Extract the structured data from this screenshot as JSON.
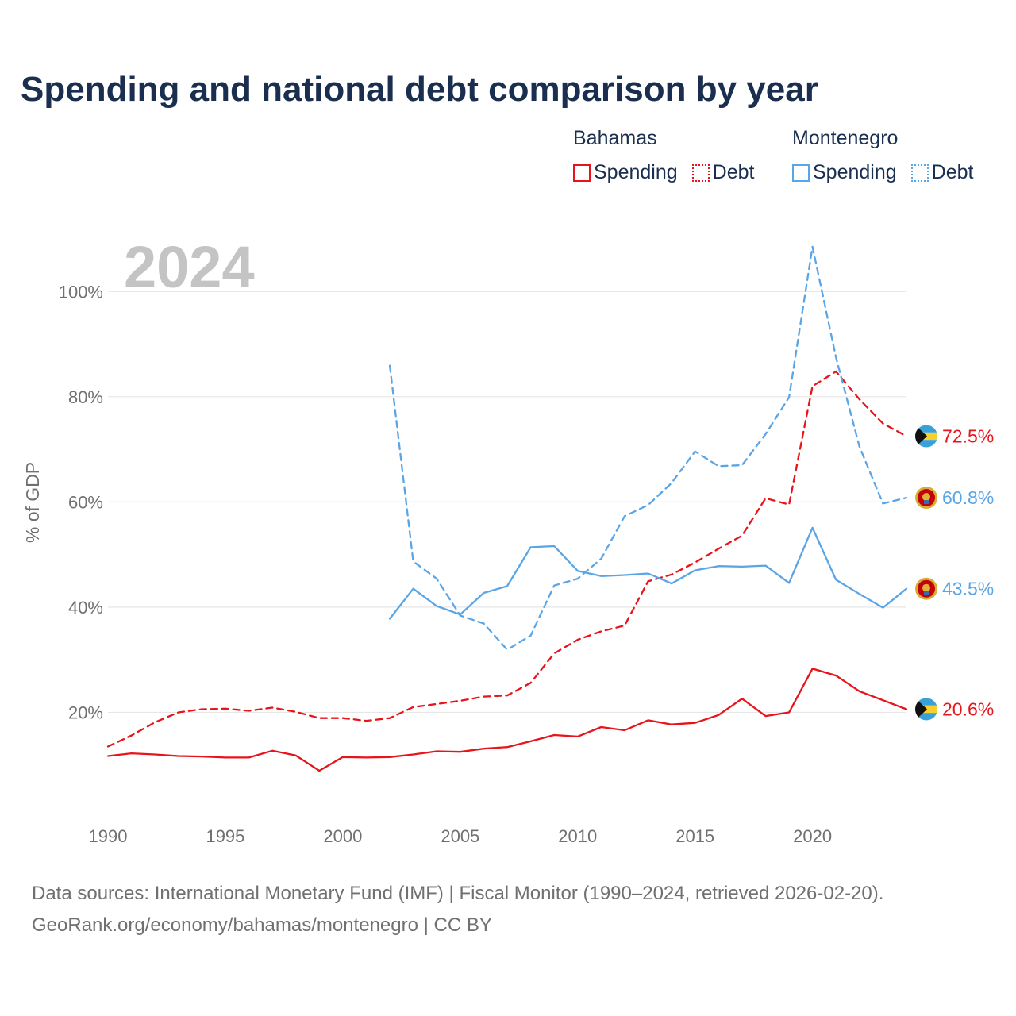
{
  "header": {
    "title": "Spending and national debt comparison by year"
  },
  "legend": {
    "groups": [
      {
        "name": "Bahamas",
        "items": [
          {
            "label": "Spending"
          },
          {
            "label": "Debt"
          }
        ]
      },
      {
        "name": "Montenegro",
        "items": [
          {
            "label": "Spending"
          },
          {
            "label": "Debt"
          }
        ]
      }
    ]
  },
  "footer": {
    "line1": "Data sources: International Monetary Fund (IMF) | Fiscal Monitor (1990–2024, retrieved 2026-02-20).",
    "line2": "GeoRank.org/economy/bahamas/montenegro | CC BY"
  },
  "colors": {
    "bahamas": "#e8141b",
    "montenegro": "#5aa5e6",
    "grid": "#e6e6e6",
    "axis_text": "#707070",
    "year_watermark": "#c4c4c4"
  },
  "chart_data": {
    "type": "line",
    "year_label": "2024",
    "ylabel": "% of GDP",
    "xlim": [
      1990,
      2024
    ],
    "ylim": [
      0,
      110
    ],
    "x_ticks": [
      1990,
      1995,
      2000,
      2005,
      2010,
      2015,
      2020
    ],
    "y_ticks": [
      20,
      40,
      60,
      80,
      100
    ],
    "y_tick_labels": [
      "20%",
      "40%",
      "60%",
      "80%",
      "100%"
    ],
    "series": [
      {
        "name": "Bahamas Spending",
        "country": "Bahamas",
        "metric": "Spending",
        "style": "solid",
        "color": "#e8141b",
        "end_label": "20.6%",
        "flag": "bahamas-flag-icon",
        "x": [
          1990,
          1991,
          1992,
          1993,
          1994,
          1995,
          1996,
          1997,
          1998,
          1999,
          2000,
          2001,
          2002,
          2003,
          2004,
          2005,
          2006,
          2007,
          2008,
          2009,
          2010,
          2011,
          2012,
          2013,
          2014,
          2015,
          2016,
          2017,
          2018,
          2019,
          2020,
          2021,
          2022,
          2023,
          2024
        ],
        "values": [
          11.7,
          12.2,
          12.0,
          11.7,
          11.6,
          11.4,
          11.4,
          12.7,
          11.8,
          8.9,
          11.5,
          11.4,
          11.5,
          12.0,
          12.6,
          12.5,
          13.1,
          13.4,
          14.5,
          15.7,
          15.4,
          17.2,
          16.6,
          18.5,
          17.7,
          18.0,
          19.5,
          22.6,
          19.3,
          20.0,
          28.3,
          27.0,
          24.0,
          22.3,
          20.6
        ]
      },
      {
        "name": "Bahamas Debt",
        "country": "Bahamas",
        "metric": "Debt",
        "style": "dashed",
        "color": "#e8141b",
        "end_label": "72.5%",
        "flag": "bahamas-flag-icon",
        "x": [
          1990,
          1991,
          1992,
          1993,
          1994,
          1995,
          1996,
          1997,
          1998,
          1999,
          2000,
          2001,
          2002,
          2003,
          2004,
          2005,
          2006,
          2007,
          2008,
          2009,
          2010,
          2011,
          2012,
          2013,
          2014,
          2015,
          2016,
          2017,
          2018,
          2019,
          2020,
          2021,
          2022,
          2023,
          2024
        ],
        "values": [
          13.5,
          15.6,
          18.1,
          20.0,
          20.6,
          20.7,
          20.3,
          20.9,
          20.1,
          18.9,
          18.9,
          18.4,
          18.9,
          21.0,
          21.6,
          22.2,
          23.0,
          23.2,
          25.6,
          31.2,
          33.8,
          35.4,
          36.5,
          44.9,
          46.2,
          48.5,
          51.1,
          53.6,
          60.7,
          59.5,
          82.0,
          84.8,
          79.5,
          74.9,
          72.5
        ]
      },
      {
        "name": "Montenegro Spending",
        "country": "Montenegro",
        "metric": "Spending",
        "style": "solid",
        "color": "#5aa5e6",
        "end_label": "43.5%",
        "flag": "montenegro-flag-icon",
        "x": [
          2002,
          2003,
          2004,
          2005,
          2006,
          2007,
          2008,
          2009,
          2010,
          2011,
          2012,
          2013,
          2014,
          2015,
          2016,
          2017,
          2018,
          2019,
          2020,
          2021,
          2022,
          2023,
          2024
        ],
        "values": [
          37.8,
          43.5,
          40.2,
          38.6,
          42.7,
          44.0,
          51.4,
          51.6,
          46.9,
          45.9,
          46.1,
          46.4,
          44.5,
          47.0,
          47.8,
          47.7,
          47.9,
          44.6,
          55.1,
          45.2,
          42.5,
          39.9,
          43.5
        ]
      },
      {
        "name": "Montenegro Debt",
        "country": "Montenegro",
        "metric": "Debt",
        "style": "dashed",
        "color": "#5aa5e6",
        "end_label": "60.8%",
        "flag": "montenegro-flag-icon",
        "x": [
          2002,
          2003,
          2004,
          2005,
          2006,
          2007,
          2008,
          2009,
          2010,
          2011,
          2012,
          2013,
          2014,
          2015,
          2016,
          2017,
          2018,
          2019,
          2020,
          2021,
          2022,
          2023,
          2024
        ],
        "values": [
          85.9,
          48.7,
          45.4,
          38.4,
          36.9,
          31.9,
          34.6,
          44.1,
          45.4,
          49.2,
          57.3,
          59.4,
          63.6,
          69.6,
          66.8,
          67.0,
          72.9,
          79.9,
          108.5,
          87.5,
          70.5,
          59.7,
          60.8
        ]
      }
    ]
  }
}
